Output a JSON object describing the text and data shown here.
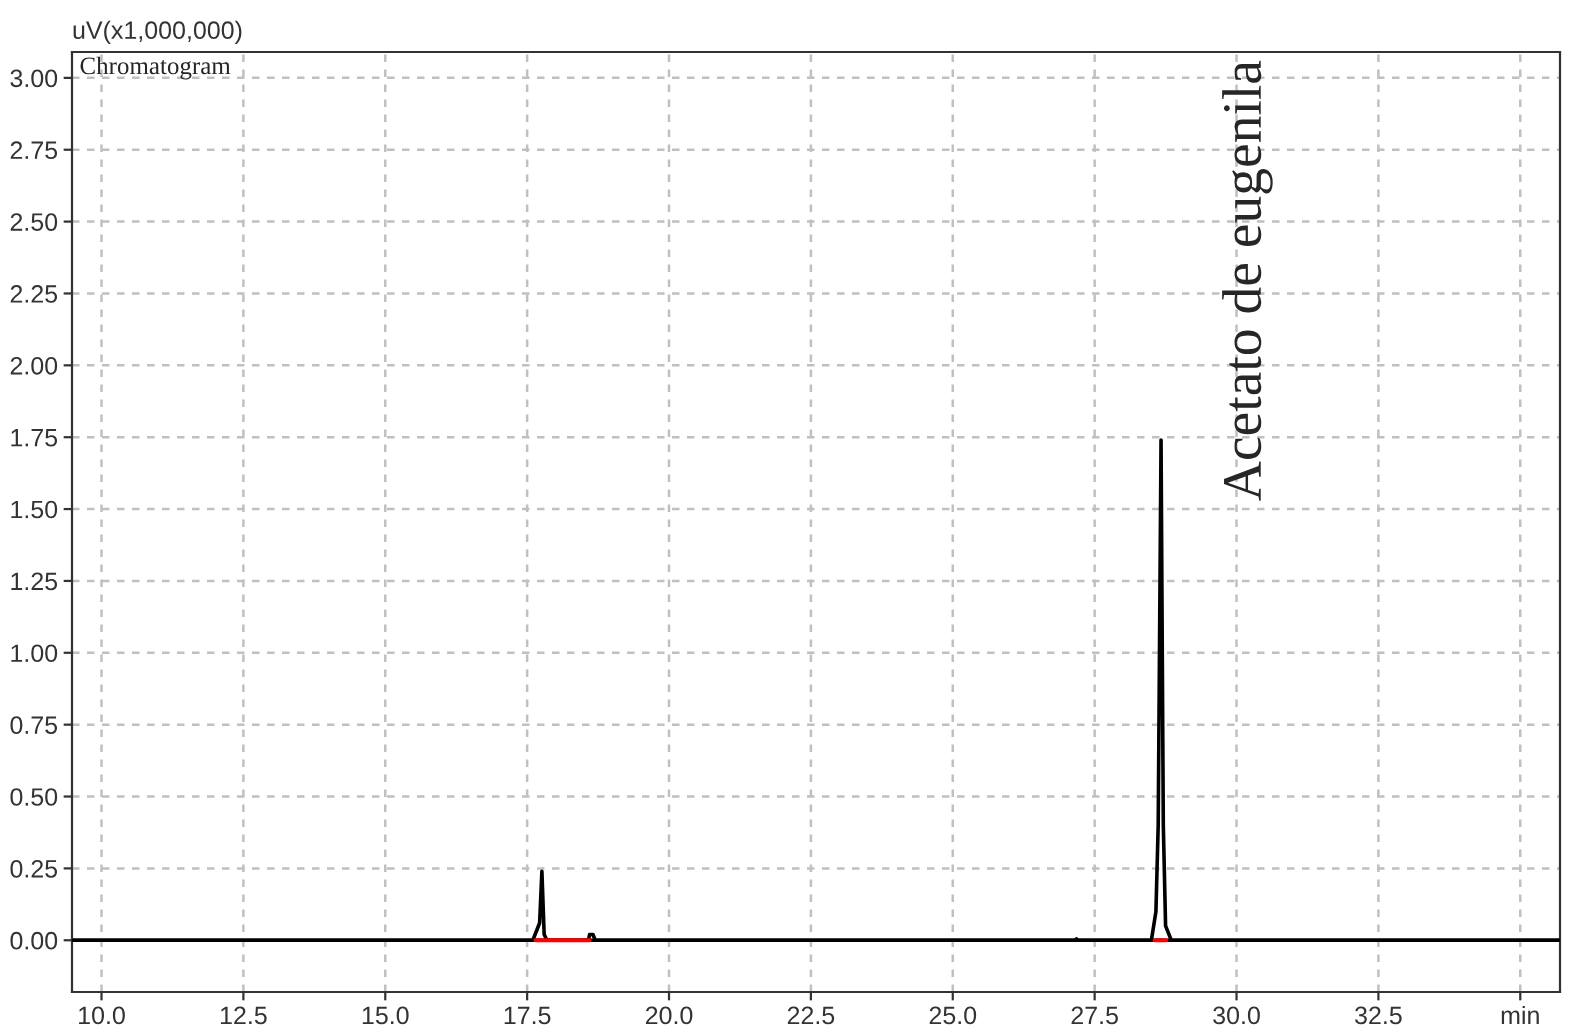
{
  "chart_data": {
    "type": "line",
    "title": "Chromatogram",
    "ylabel": "uV(x1,000,000)",
    "series": [
      {
        "color": "#000000",
        "x": [
          9.5,
          17.6,
          17.68,
          17.72,
          17.76,
          17.8,
          17.85,
          18.58,
          18.6,
          18.63,
          18.66,
          18.7,
          27.15,
          27.18,
          27.21,
          28.5,
          28.58,
          28.62,
          28.67,
          28.71,
          28.75,
          28.85,
          35.7
        ],
        "values": [
          0,
          0,
          0.04,
          0.06,
          0.24,
          0.02,
          0,
          0,
          0.02,
          0.02,
          0.02,
          0,
          0,
          0.005,
          0,
          0,
          0.1,
          0.4,
          1.74,
          0.4,
          0.05,
          0,
          0
        ]
      },
      {
        "color": "#ff0000",
        "x": [
          17.65,
          18.6
        ],
        "values": [
          0,
          0
        ]
      },
      {
        "color": "#ff0000",
        "x": [
          28.56,
          28.76
        ],
        "values": [
          0,
          0
        ]
      }
    ],
    "annotations": [
      {
        "text": "Acetato de eugenila",
        "x": 28.67,
        "y": 1.74
      }
    ],
    "xlim": [
      9.48,
      35.7
    ],
    "ylim": [
      -0.18,
      3.09
    ],
    "xticks": [
      {
        "value": 10,
        "label": "10.0"
      },
      12.5,
      {
        "value": 15,
        "label": "15.0"
      },
      17.5,
      {
        "value": 20,
        "label": "20.0"
      },
      22.5,
      {
        "value": 25,
        "label": "25.0"
      },
      27.5,
      {
        "value": 30,
        "label": "30.0"
      },
      32.5,
      {
        "value": 35,
        "label": "min"
      }
    ],
    "yticks": [
      {
        "value": 0,
        "label": "0.00"
      },
      {
        "value": 0.25,
        "label": "0.25"
      },
      {
        "value": 0.5,
        "label": "0.50"
      },
      {
        "value": 0.75,
        "label": "0.75"
      },
      {
        "value": 1.0,
        "label": "1.00"
      },
      {
        "value": 1.25,
        "label": "1.25"
      },
      {
        "value": 1.5,
        "label": "1.50"
      },
      {
        "value": 1.75,
        "label": "1.75"
      },
      {
        "value": 2.0,
        "label": "2.00"
      },
      {
        "value": 2.25,
        "label": "2.25"
      },
      {
        "value": 2.5,
        "label": "2.50"
      },
      {
        "value": 2.75,
        "label": "2.75"
      },
      {
        "value": 3.0,
        "label": "3.00"
      }
    ],
    "grid": true,
    "line_style": "solid",
    "marker": "none"
  }
}
